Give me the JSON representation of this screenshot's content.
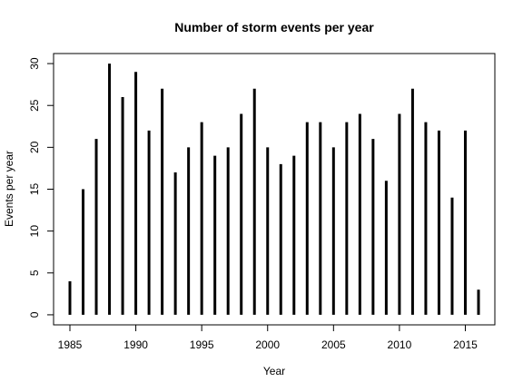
{
  "chart_data": {
    "type": "bar",
    "title": "Number of storm events per year",
    "xlabel": "Year",
    "ylabel": "Events per year",
    "x": [
      1985,
      1986,
      1987,
      1988,
      1989,
      1990,
      1991,
      1992,
      1993,
      1994,
      1995,
      1996,
      1997,
      1998,
      1999,
      2000,
      2001,
      2002,
      2003,
      2004,
      2005,
      2006,
      2007,
      2008,
      2009,
      2010,
      2011,
      2012,
      2013,
      2014,
      2015,
      2016
    ],
    "values": [
      4,
      15,
      21,
      30,
      26,
      29,
      22,
      27,
      17,
      20,
      23,
      19,
      20,
      24,
      27,
      20,
      18,
      19,
      23,
      23,
      20,
      23,
      24,
      21,
      16,
      24,
      27,
      23,
      22,
      14,
      22,
      3
    ],
    "xlim": [
      1983.76,
      2017.24
    ],
    "ylim": [
      -1.2,
      31.2
    ],
    "xticks": [
      1985,
      1990,
      1995,
      2000,
      2005,
      2010,
      2015
    ],
    "yticks": [
      0,
      5,
      10,
      15,
      20,
      25,
      30
    ],
    "grid": false,
    "legend": "none",
    "bar_color": "#000000"
  }
}
